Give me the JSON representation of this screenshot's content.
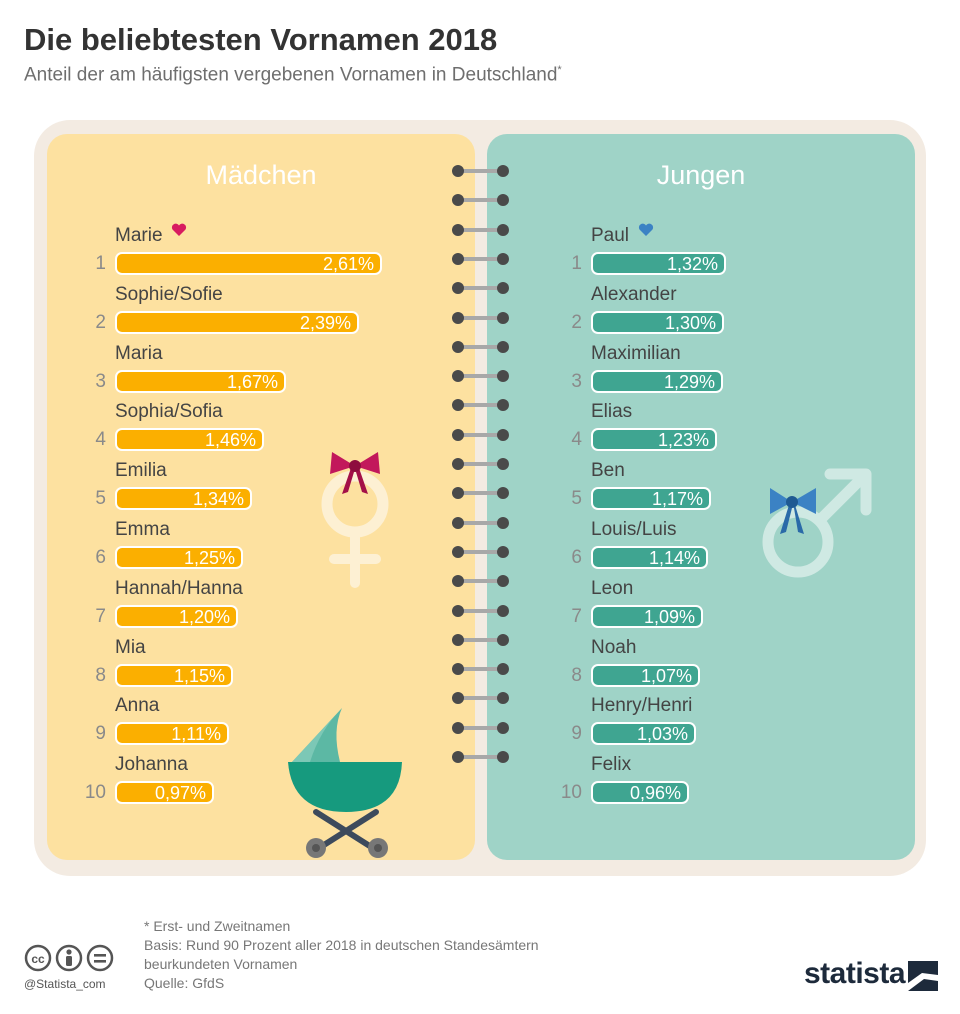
{
  "title": "Die beliebtesten Vornamen 2018",
  "subtitle": "Anteil der am häufigsten vergebenen Vornamen in Deutschland",
  "subtitle_mark": "*",
  "chart_data": [
    {
      "type": "bar",
      "title": "Mädchen",
      "categories": [
        "Marie",
        "Sophie/Sofie",
        "Maria",
        "Sophia/Sofia",
        "Emilia",
        "Emma",
        "Hannah/Hanna",
        "Mia",
        "Anna",
        "Johanna"
      ],
      "ranks": [
        "1",
        "2",
        "3",
        "4",
        "5",
        "6",
        "7",
        "8",
        "9",
        "10"
      ],
      "values": [
        2.61,
        2.39,
        1.67,
        1.46,
        1.34,
        1.25,
        1.2,
        1.15,
        1.11,
        0.97
      ],
      "labels": [
        "2,61%",
        "2,39%",
        "1,67%",
        "1,46%",
        "1,34%",
        "1,25%",
        "1,20%",
        "1,15%",
        "1,11%",
        "0,97%"
      ],
      "unit": "%",
      "color": "#fbaf00"
    },
    {
      "type": "bar",
      "title": "Jungen",
      "categories": [
        "Paul",
        "Alexander",
        "Maximilian",
        "Elias",
        "Ben",
        "Louis/Luis",
        "Leon",
        "Noah",
        "Henry/Henri",
        "Felix"
      ],
      "ranks": [
        "1",
        "2",
        "3",
        "4",
        "5",
        "6",
        "7",
        "8",
        "9",
        "10"
      ],
      "values": [
        1.32,
        1.3,
        1.29,
        1.23,
        1.17,
        1.14,
        1.09,
        1.07,
        1.03,
        0.96
      ],
      "labels": [
        "1,32%",
        "1,30%",
        "1,29%",
        "1,23%",
        "1,17%",
        "1,14%",
        "1,09%",
        "1,07%",
        "1,03%",
        "0,96%"
      ],
      "unit": "%",
      "color": "#3fa591"
    }
  ],
  "footnote": {
    "line1": "* Erst- und Zweitnamen",
    "line2": "Basis: Rund 90 Prozent aller 2018 in deutschen Standesämtern",
    "line3": "beurkundeten Vornamen",
    "line4": "Quelle: GfdS"
  },
  "handle": "@Statista_com",
  "logo": "statista",
  "icons": [
    "heart-icon",
    "venus-icon",
    "mars-icon",
    "bow-icon",
    "stroller-icon",
    "cc-icon",
    "by-icon",
    "nd-icon"
  ]
}
